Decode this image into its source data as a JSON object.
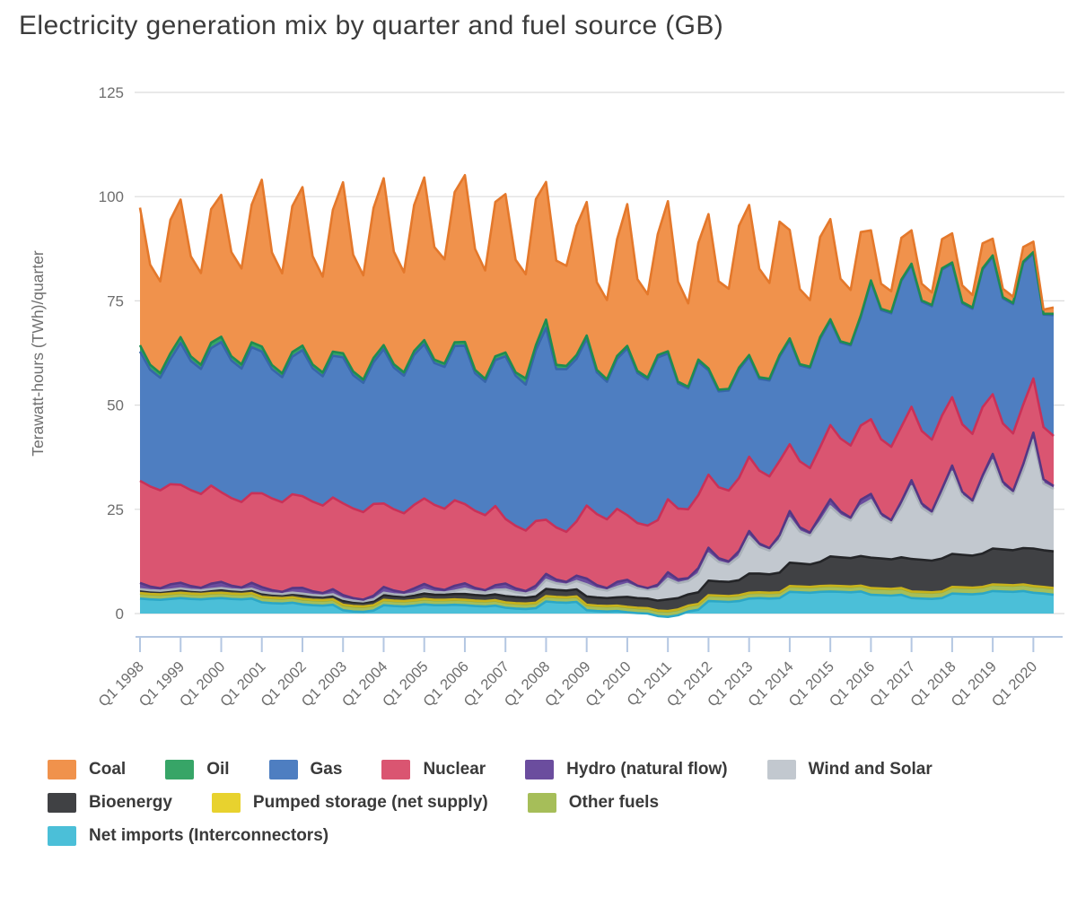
{
  "title": "Electricity generation mix by quarter and fuel source (GB)",
  "chart_data": {
    "type": "area",
    "stacked": true,
    "title": "Electricity generation mix by quarter and fuel source (GB)",
    "ylabel": "Terawatt-hours (TWh)/quarter",
    "xlabel": "",
    "ylim": [
      0,
      125
    ],
    "yticks": [
      0,
      25,
      50,
      75,
      100,
      125
    ],
    "grid": "horizontal",
    "legend_position": "bottom",
    "x_start": "Q1 1998",
    "x_end": "Q3 2020",
    "points_per_year": 4,
    "x_ticks": [
      "Q1 1998",
      "Q1 1999",
      "Q1 2000",
      "Q1 2001",
      "Q1 2002",
      "Q1 2003",
      "Q1 2004",
      "Q1 2005",
      "Q1 2006",
      "Q1 2007",
      "Q1 2008",
      "Q1 2009",
      "Q1 2010",
      "Q1 2011",
      "Q1 2012",
      "Q1 2013",
      "Q1 2014",
      "Q1 2015",
      "Q1 2016",
      "Q1 2017",
      "Q1 2018",
      "Q1 2019",
      "Q1 2020"
    ],
    "series": [
      {
        "key": "net_imports",
        "label": "Net imports (Interconnectors)",
        "color": "#4BBFD8",
        "edge": "#2BA7C6",
        "values": [
          3.6,
          3.4,
          3.3,
          3.5,
          3.7,
          3.5,
          3.4,
          3.6,
          3.7,
          3.5,
          3.4,
          3.6,
          2.7,
          2.5,
          2.4,
          2.6,
          2.2,
          2.0,
          1.9,
          2.1,
          0.8,
          0.5,
          0.4,
          0.7,
          2.0,
          1.8,
          1.7,
          1.9,
          2.2,
          2.0,
          2.0,
          2.1,
          2.0,
          1.8,
          1.7,
          1.9,
          1.4,
          1.2,
          1.1,
          1.3,
          2.9,
          2.7,
          2.6,
          2.8,
          0.8,
          0.6,
          0.5,
          0.6,
          0.3,
          0.1,
          0.0,
          -0.6,
          -0.8,
          -0.4,
          0.5,
          0.9,
          3.0,
          2.9,
          2.8,
          3.0,
          3.6,
          3.7,
          3.6,
          3.7,
          5.2,
          5.1,
          5.0,
          5.2,
          5.3,
          5.2,
          5.1,
          5.3,
          4.5,
          4.4,
          4.3,
          4.5,
          3.7,
          3.6,
          3.5,
          3.7,
          4.8,
          4.7,
          4.6,
          4.8,
          5.4,
          5.3,
          5.2,
          5.4,
          5.0,
          4.8,
          4.5
        ]
      },
      {
        "key": "other_fuels",
        "label": "Other fuels",
        "color": "#A6BE59",
        "edge": "#8EA73E",
        "values": [
          1.2,
          1.2,
          1.2,
          1.2,
          1.2,
          1.2,
          1.2,
          1.2,
          1.2,
          1.2,
          1.2,
          1.2,
          1.2,
          1.2,
          1.2,
          1.2,
          1.2,
          1.2,
          1.2,
          1.2,
          1.2,
          1.2,
          1.2,
          1.2,
          1.2,
          1.2,
          1.2,
          1.2,
          1.2,
          1.2,
          1.2,
          1.2,
          1.2,
          1.2,
          1.2,
          1.2,
          1.2,
          1.2,
          1.2,
          1.2,
          1.2,
          1.2,
          1.2,
          1.2,
          1.2,
          1.2,
          1.2,
          1.2,
          1.2,
          1.2,
          1.2,
          1.2,
          1.3,
          1.3,
          1.3,
          1.3,
          1.3,
          1.3,
          1.3,
          1.3,
          1.3,
          1.3,
          1.3,
          1.3,
          1.3,
          1.3,
          1.3,
          1.3,
          1.3,
          1.3,
          1.3,
          1.3,
          1.5,
          1.5,
          1.5,
          1.5,
          1.5,
          1.5,
          1.5,
          1.5,
          1.5,
          1.5,
          1.5,
          1.5,
          1.5,
          1.5,
          1.5,
          1.5,
          1.5,
          1.5,
          1.5
        ]
      },
      {
        "key": "pumped_storage",
        "label": "Pumped storage (net supply)",
        "color": "#E8D22E",
        "edge": "#C8B31C",
        "values": [
          0.1,
          0.1,
          0.1,
          0.1,
          0.1,
          0.1,
          0.1,
          0.1,
          0.1,
          0.1,
          0.1,
          0.1,
          0.1,
          0.1,
          0.1,
          0.1,
          0.1,
          0.1,
          0.1,
          0.1,
          0.1,
          0.1,
          0.1,
          0.1,
          0.1,
          0.1,
          0.1,
          0.1,
          0.1,
          0.1,
          0.1,
          0.1,
          0.1,
          0.1,
          0.1,
          0.1,
          0.1,
          0.1,
          0.1,
          0.1,
          0.1,
          0.1,
          0.1,
          0.1,
          0.1,
          0.1,
          0.1,
          0.1,
          0.1,
          0.1,
          0.1,
          0.1,
          0.1,
          0.1,
          0.1,
          0.1,
          0.1,
          0.1,
          0.1,
          0.1,
          0.1,
          0.1,
          0.1,
          0.1,
          0.1,
          0.1,
          0.1,
          0.1,
          0.1,
          0.1,
          0.1,
          0.1,
          0.1,
          0.1,
          0.1,
          0.1,
          0.1,
          0.1,
          0.1,
          0.1,
          0.1,
          0.1,
          0.1,
          0.1,
          0.1,
          0.1,
          0.1,
          0.1,
          0.1,
          0.1,
          0.1
        ]
      },
      {
        "key": "bioenergy",
        "label": "Bioenergy",
        "color": "#404144",
        "edge": "#242528",
        "values": [
          0.7,
          0.7,
          0.7,
          0.7,
          0.75,
          0.72,
          0.72,
          0.75,
          0.8,
          0.78,
          0.76,
          0.8,
          0.85,
          0.8,
          0.8,
          0.85,
          0.9,
          0.88,
          0.86,
          0.9,
          1.0,
          0.97,
          0.95,
          1.0,
          1.1,
          1.07,
          1.05,
          1.1,
          1.3,
          1.25,
          1.2,
          1.3,
          1.4,
          1.35,
          1.3,
          1.4,
          1.5,
          1.45,
          1.4,
          1.5,
          1.7,
          1.65,
          1.6,
          1.7,
          2.0,
          1.95,
          1.9,
          2.0,
          2.4,
          2.3,
          2.3,
          2.4,
          2.8,
          2.7,
          2.7,
          2.8,
          3.5,
          3.4,
          3.4,
          3.6,
          4.6,
          4.5,
          4.4,
          4.7,
          5.6,
          5.5,
          5.4,
          5.8,
          7.0,
          6.9,
          6.8,
          7.1,
          7.3,
          7.2,
          7.1,
          7.4,
          7.8,
          7.7,
          7.6,
          7.9,
          7.9,
          7.8,
          7.7,
          8.0,
          8.6,
          8.5,
          8.4,
          8.7,
          9.0,
          8.8,
          8.8
        ]
      },
      {
        "key": "wind_solar",
        "label": "Wind and Solar",
        "color": "#C2C8CF",
        "edge": "#A9B1B9",
        "values": [
          0.25,
          0.18,
          0.16,
          0.22,
          0.25,
          0.18,
          0.16,
          0.22,
          0.3,
          0.22,
          0.2,
          0.27,
          0.3,
          0.22,
          0.2,
          0.27,
          0.37,
          0.27,
          0.24,
          0.33,
          0.44,
          0.32,
          0.28,
          0.39,
          0.6,
          0.45,
          0.4,
          0.55,
          0.9,
          0.63,
          0.56,
          0.77,
          1.25,
          0.9,
          0.8,
          1.1,
          1.6,
          1.2,
          1.0,
          1.4,
          2.2,
          1.6,
          1.4,
          2.0,
          2.9,
          2.1,
          1.8,
          2.5,
          3.1,
          2.4,
          2.1,
          2.9,
          5.0,
          3.6,
          3.2,
          4.4,
          6.5,
          4.7,
          4.2,
          5.7,
          8.9,
          6.4,
          5.7,
          7.8,
          10.7,
          7.7,
          6.9,
          9.5,
          12.0,
          10.0,
          9.0,
          12.0,
          13.8,
          9.9,
          8.8,
          12.1,
          17.4,
          12.5,
          11.1,
          15.3,
          19.7,
          14.2,
          12.6,
          17.4,
          21.1,
          15.2,
          13.5,
          18.6,
          26.0,
          16.0,
          15.0
        ]
      },
      {
        "key": "hydro",
        "label": "Hydro (natural flow)",
        "color": "#6B4D9E",
        "edge": "#553784",
        "values": [
          1.5,
          0.9,
          0.6,
          1.3,
          1.4,
          0.9,
          0.6,
          1.3,
          1.5,
          0.9,
          0.6,
          1.4,
          1.2,
          0.8,
          0.5,
          1.1,
          1.4,
          0.9,
          0.6,
          1.2,
          0.9,
          0.6,
          0.4,
          0.9,
          1.4,
          0.9,
          0.6,
          1.2,
          1.4,
          0.9,
          0.6,
          1.2,
          1.3,
          0.8,
          0.5,
          1.1,
          1.4,
          0.9,
          0.6,
          1.2,
          1.4,
          0.9,
          0.7,
          1.3,
          1.4,
          0.9,
          0.6,
          1.2,
          1.0,
          0.6,
          0.4,
          0.9,
          1.5,
          0.9,
          0.7,
          1.4,
          1.4,
          0.9,
          0.7,
          1.3,
          1.3,
          0.8,
          0.6,
          1.2,
          1.7,
          1.0,
          0.7,
          1.5,
          1.7,
          1.0,
          0.7,
          1.5,
          1.5,
          0.9,
          0.6,
          1.3,
          1.5,
          1.0,
          0.7,
          1.4,
          1.5,
          0.9,
          0.6,
          1.3,
          1.6,
          1.0,
          0.7,
          1.5,
          1.8,
          1.0,
          0.7
        ]
      },
      {
        "key": "nuclear",
        "label": "Nuclear",
        "color": "#DA5571",
        "edge": "#C93158",
        "values": [
          24.5,
          24,
          23.5,
          24,
          23.5,
          23,
          22.5,
          23.5,
          21.5,
          21,
          20.5,
          21.5,
          22.5,
          22,
          21.5,
          22.5,
          22,
          21.5,
          21,
          22,
          22,
          21.5,
          21,
          22,
          20,
          19.5,
          19,
          20,
          20.5,
          20,
          19.5,
          20.5,
          19,
          18.5,
          18,
          19,
          15.5,
          15,
          14.5,
          15.5,
          13,
          12.5,
          12,
          13,
          17.5,
          17,
          16.5,
          17.5,
          15.5,
          15,
          15,
          15.5,
          17.5,
          17,
          16.5,
          17.5,
          17.5,
          17,
          17,
          17.5,
          17.8,
          17.5,
          17.2,
          17.8,
          16,
          15.8,
          15.5,
          16.5,
          17.8,
          17.5,
          17.3,
          17.8,
          17.9,
          17.8,
          17.6,
          17.9,
          17.6,
          17.4,
          17.2,
          17.6,
          16.4,
          16.2,
          16,
          16.4,
          14.3,
          14,
          13.8,
          14.3,
          13,
          12.5,
          12
        ]
      },
      {
        "key": "gas",
        "label": "Gas",
        "color": "#4E7EC1",
        "edge": "#3766A9",
        "values": [
          31,
          28,
          27,
          30,
          34,
          31,
          30,
          33,
          36,
          33,
          32,
          35,
          34,
          31,
          30,
          33,
          35,
          32,
          31,
          34,
          35,
          32,
          31,
          34,
          37,
          34,
          33,
          36,
          37,
          34,
          34,
          37,
          38,
          33,
          32,
          35,
          39,
          36,
          35,
          41,
          46,
          38,
          39,
          39,
          40,
          34,
          33,
          36,
          40,
          36,
          35,
          39,
          35,
          30,
          29,
          32,
          25,
          23,
          24,
          26,
          24,
          22,
          23,
          25,
          25,
          23,
          24,
          26,
          25,
          23,
          24,
          26,
          33,
          31,
          32,
          35,
          34,
          31,
          32,
          35,
          32,
          29,
          30,
          33,
          33,
          30,
          31,
          34,
          30,
          27,
          29
        ]
      },
      {
        "key": "oil",
        "label": "Oil",
        "color": "#37A567",
        "edge": "#1F8C50",
        "values": [
          1.5,
          1.2,
          1.1,
          1.4,
          1.4,
          1.1,
          1.0,
          1.3,
          1.3,
          1.0,
          1.0,
          1.2,
          1.2,
          1.0,
          0.9,
          1.1,
          1.1,
          0.9,
          0.9,
          1.0,
          1.0,
          0.9,
          0.8,
          1.0,
          1.0,
          0.8,
          0.8,
          0.9,
          1.0,
          0.8,
          0.8,
          0.9,
          0.9,
          0.8,
          0.7,
          0.9,
          0.9,
          0.8,
          1.5,
          1.2,
          2.0,
          1.0,
          0.8,
          0.9,
          0.8,
          0.6,
          0.6,
          0.7,
          0.6,
          0.5,
          0.5,
          0.6,
          0.5,
          0.4,
          0.4,
          0.5,
          0.5,
          0.4,
          0.4,
          0.5,
          0.4,
          0.4,
          0.4,
          0.4,
          0.4,
          0.3,
          0.3,
          0.4,
          0.4,
          0.3,
          0.3,
          0.4,
          0.3,
          0.3,
          0.3,
          0.3,
          0.3,
          0.3,
          0.3,
          0.3,
          0.3,
          0.3,
          0.3,
          0.3,
          0.3,
          0.3,
          0.3,
          0.3,
          0.3,
          0.2,
          0.3
        ]
      },
      {
        "key": "coal",
        "label": "Coal",
        "color": "#F0924C",
        "edge": "#E4782B",
        "values": [
          33,
          24,
          22,
          32,
          33,
          24,
          22,
          32,
          34,
          25,
          23,
          33,
          40,
          27,
          24,
          35,
          38,
          26,
          23,
          34,
          41,
          28,
          25,
          36,
          40,
          27,
          24,
          35,
          39,
          27,
          25,
          36,
          40,
          29,
          26,
          37,
          38,
          27,
          25,
          35,
          33,
          25,
          24,
          31,
          32,
          21,
          19,
          28,
          34,
          22,
          20,
          29,
          36,
          24,
          20,
          28,
          37,
          26,
          24,
          34,
          36,
          26,
          23,
          32,
          26,
          18,
          16,
          24,
          24,
          15,
          13,
          20,
          12,
          6,
          5,
          10,
          8,
          4,
          3,
          7,
          7,
          4,
          3,
          6,
          4,
          2,
          1.5,
          3.5,
          2.5,
          1,
          1.5
        ]
      }
    ],
    "legend_rows": [
      [
        "coal",
        "oil",
        "gas",
        "nuclear",
        "hydro",
        "wind_solar"
      ],
      [
        "bioenergy",
        "pumped_storage",
        "other_fuels"
      ],
      [
        "net_imports"
      ]
    ]
  }
}
